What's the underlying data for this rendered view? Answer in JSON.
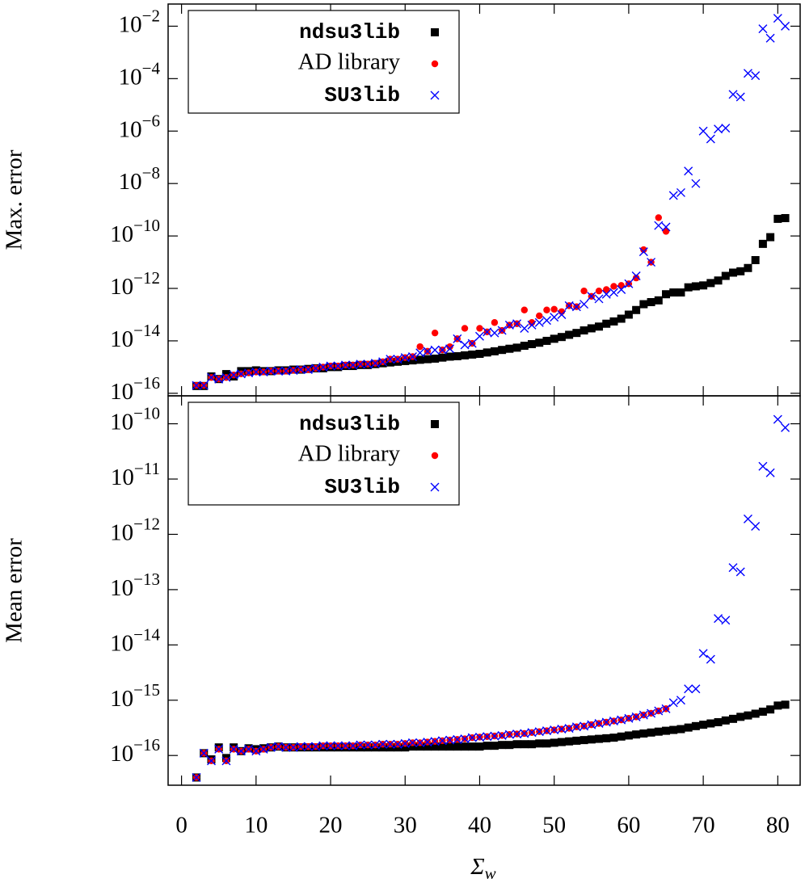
{
  "chart_data": [
    {
      "type": "scatter",
      "ylabel": "Max. error",
      "log_y": true,
      "legend": "upper left",
      "x": [
        2,
        3,
        4,
        5,
        6,
        7,
        8,
        9,
        10,
        11,
        12,
        13,
        14,
        15,
        16,
        17,
        18,
        19,
        20,
        21,
        22,
        23,
        24,
        25,
        26,
        27,
        28,
        29,
        30,
        31,
        32,
        33,
        34,
        35,
        36,
        37,
        38,
        39,
        40,
        41,
        42,
        43,
        44,
        45,
        46,
        47,
        48,
        49,
        50,
        51,
        52,
        53,
        54,
        55,
        56,
        57,
        58,
        59,
        60,
        61,
        62,
        63,
        64,
        65,
        66,
        67,
        68,
        69,
        70,
        71,
        72,
        73,
        74,
        75,
        76,
        77,
        78,
        79,
        80,
        81
      ],
      "xlim": [
        -1.8,
        83
      ],
      "xticks": [
        0,
        10,
        20,
        30,
        40,
        50,
        60,
        70,
        80
      ],
      "ylim": [
        8e-17,
        0.07
      ],
      "yticks": [
        {
          "value": 1e-16,
          "label": "10−16"
        },
        {
          "value": 1e-14,
          "label": "10−14"
        },
        {
          "value": 1e-12,
          "label": "10−12"
        },
        {
          "value": 1e-10,
          "label": "10−10"
        },
        {
          "value": 1e-08,
          "label": "10−8"
        },
        {
          "value": 1e-06,
          "label": "10−6"
        },
        {
          "value": 0.0001,
          "label": "10−4"
        },
        {
          "value": 0.01,
          "label": "10−2"
        }
      ],
      "series": [
        {
          "name": "ndsu3lib",
          "color": "#000000",
          "marker": "square",
          "values": [
            1.9e-16,
            1.9e-16,
            4.4e-16,
            3.5e-16,
            5.4e-16,
            4.4e-16,
            7e-16,
            7e-16,
            7.5e-16,
            7e-16,
            7e-16,
            7.5e-16,
            7.5e-16,
            8e-16,
            8e-16,
            8.5e-16,
            9e-16,
            9e-16,
            1e-15,
            1e-15,
            1.1e-15,
            1.1e-15,
            1.2e-15,
            1.2e-15,
            1.3e-15,
            1.4e-15,
            1.5e-15,
            1.6e-15,
            1.7e-15,
            1.8e-15,
            1.9e-15,
            2e-15,
            2.1e-15,
            2.3e-15,
            2.5e-15,
            2.6e-15,
            2.8e-15,
            3e-15,
            3.2e-15,
            3.6e-15,
            4e-15,
            4.5e-15,
            5e-15,
            5.5e-15,
            6.5e-15,
            7.5e-15,
            8.5e-15,
            1e-14,
            1.2e-14,
            1.4e-14,
            1.7e-14,
            2e-14,
            2.5e-14,
            3e-14,
            3.5e-14,
            4.5e-14,
            5.5e-14,
            7e-14,
            1e-13,
            1.5e-13,
            2.5e-13,
            3e-13,
            3.5e-13,
            6e-13,
            7e-13,
            7e-13,
            1.1e-12,
            1.2e-12,
            1.3e-12,
            1.6e-12,
            2e-12,
            3e-12,
            4e-12,
            4.5e-12,
            6e-12,
            1.2e-11,
            5e-11,
            9e-11,
            4.5e-10,
            4.8e-10
          ]
        },
        {
          "name": "AD library",
          "color": "#ff0000",
          "marker": "circle",
          "values": [
            2e-16,
            2e-16,
            4e-16,
            3.5e-16,
            4e-16,
            5e-16,
            5.5e-16,
            6e-16,
            6.5e-16,
            6.5e-16,
            7e-16,
            7e-16,
            7e-16,
            7.5e-16,
            8e-16,
            8e-16,
            9e-16,
            1e-15,
            1.1e-15,
            1.1e-15,
            1.2e-15,
            1.2e-15,
            1.3e-15,
            1.3e-15,
            1.4e-15,
            1.6e-15,
            2e-15,
            2e-15,
            2.3e-15,
            2.5e-15,
            6e-15,
            4e-15,
            2e-14,
            4.5e-15,
            6e-15,
            1.2e-14,
            3e-14,
            8e-15,
            3e-14,
            2.2e-14,
            5e-14,
            2.5e-14,
            4e-14,
            4.5e-14,
            1.5e-13,
            5e-14,
            9e-14,
            1.5e-13,
            1.6e-13,
            1.3e-13,
            2.2e-13,
            2e-13,
            8e-13,
            5e-13,
            8e-13,
            9e-13,
            1.2e-12,
            1.3e-12,
            1.5e-12,
            2.5e-12,
            3e-11,
            1e-11,
            5e-10,
            1.5e-10,
            null,
            null,
            null,
            null,
            null,
            null,
            null,
            null,
            null,
            null,
            null,
            null,
            null,
            null,
            null,
            null
          ]
        },
        {
          "name": "SU3lib",
          "color": "#0000ff",
          "marker": "cross",
          "values": [
            2e-16,
            2e-16,
            4e-16,
            3.5e-16,
            4e-16,
            5e-16,
            5.5e-16,
            6e-16,
            6.5e-16,
            6.5e-16,
            7e-16,
            7e-16,
            7e-16,
            7.5e-16,
            8e-16,
            8e-16,
            9e-16,
            1e-15,
            1.1e-15,
            1.1e-15,
            1.2e-15,
            1.2e-15,
            1.3e-15,
            1.3e-15,
            1.4e-15,
            1.6e-15,
            2e-15,
            2e-15,
            2.3e-15,
            2.5e-15,
            3.5e-15,
            4e-15,
            4.5e-15,
            4.5e-15,
            5e-15,
            1.2e-14,
            7e-15,
            8e-15,
            1.5e-14,
            2.2e-14,
            2e-14,
            2.5e-14,
            4e-14,
            4.5e-14,
            3e-14,
            4e-14,
            5e-14,
            6e-14,
            8e-14,
            1e-13,
            2.2e-13,
            2e-13,
            2.5e-13,
            5e-13,
            4e-13,
            6e-13,
            7e-13,
            9e-13,
            1.5e-12,
            3e-12,
            2.5e-11,
            1e-11,
            2.5e-10,
            2.2e-10,
            3.5e-09,
            4.5e-09,
            3e-08,
            1e-08,
            1e-06,
            5e-07,
            1.2e-06,
            1.3e-06,
            2.5e-05,
            2e-05,
            0.00016,
            0.00013,
            0.008,
            0.0035,
            0.02,
            0.01
          ]
        }
      ]
    },
    {
      "type": "scatter",
      "ylabel": "Mean error",
      "xlabel": "Σw",
      "log_y": true,
      "legend": "upper left",
      "x": [
        2,
        3,
        4,
        5,
        6,
        7,
        8,
        9,
        10,
        11,
        12,
        13,
        14,
        15,
        16,
        17,
        18,
        19,
        20,
        21,
        22,
        23,
        24,
        25,
        26,
        27,
        28,
        29,
        30,
        31,
        32,
        33,
        34,
        35,
        36,
        37,
        38,
        39,
        40,
        41,
        42,
        43,
        44,
        45,
        46,
        47,
        48,
        49,
        50,
        51,
        52,
        53,
        54,
        55,
        56,
        57,
        58,
        59,
        60,
        61,
        62,
        63,
        64,
        65,
        66,
        67,
        68,
        69,
        70,
        71,
        72,
        73,
        74,
        75,
        76,
        77,
        78,
        79,
        80,
        81
      ],
      "xlim": [
        -1.8,
        83
      ],
      "xticks": [
        0,
        10,
        20,
        30,
        40,
        50,
        60,
        70,
        80
      ],
      "ylim": [
        2.9e-17,
        3.2e-10
      ],
      "yticks": [
        {
          "value": 1e-16,
          "label": "10−16"
        },
        {
          "value": 1e-15,
          "label": "10−15"
        },
        {
          "value": 1e-14,
          "label": "10−14"
        },
        {
          "value": 1e-13,
          "label": "10−13"
        },
        {
          "value": 1e-12,
          "label": "10−12"
        },
        {
          "value": 1e-11,
          "label": "10−11"
        },
        {
          "value": 1e-10,
          "label": "10−10"
        }
      ],
      "series": [
        {
          "name": "ndsu3lib",
          "color": "#000000",
          "marker": "square",
          "values": [
            4e-17,
            1.1e-16,
            8.5e-17,
            1.4e-16,
            9e-17,
            1.4e-16,
            1.2e-16,
            1.35e-16,
            1.3e-16,
            1.35e-16,
            1.4e-16,
            1.45e-16,
            1.4e-16,
            1.4e-16,
            1.4e-16,
            1.4e-16,
            1.4e-16,
            1.4e-16,
            1.4e-16,
            1.4e-16,
            1.4e-16,
            1.4e-16,
            1.4e-16,
            1.4e-16,
            1.4e-16,
            1.4e-16,
            1.4e-16,
            1.4e-16,
            1.4e-16,
            1.45e-16,
            1.45e-16,
            1.45e-16,
            1.45e-16,
            1.45e-16,
            1.45e-16,
            1.45e-16,
            1.45e-16,
            1.45e-16,
            1.45e-16,
            1.5e-16,
            1.5e-16,
            1.55e-16,
            1.55e-16,
            1.6e-16,
            1.6e-16,
            1.6e-16,
            1.65e-16,
            1.65e-16,
            1.7e-16,
            1.75e-16,
            1.8e-16,
            1.85e-16,
            1.9e-16,
            1.95e-16,
            2e-16,
            2.05e-16,
            2.1e-16,
            2.2e-16,
            2.3e-16,
            2.4e-16,
            2.5e-16,
            2.6e-16,
            2.7e-16,
            2.8e-16,
            2.9e-16,
            3e-16,
            3.2e-16,
            3.4e-16,
            3.6e-16,
            3.8e-16,
            4e-16,
            4.3e-16,
            4.6e-16,
            5e-16,
            5.3e-16,
            5.7e-16,
            6.2e-16,
            6.8e-16,
            8e-16,
            8.3e-16
          ]
        },
        {
          "name": "AD library",
          "color": "#ff0000",
          "marker": "circle",
          "values": [
            4e-17,
            1.1e-16,
            8e-17,
            1.3e-16,
            8e-17,
            1.3e-16,
            1.2e-16,
            1.3e-16,
            1.2e-16,
            1.3e-16,
            1.4e-16,
            1.45e-16,
            1.4e-16,
            1.4e-16,
            1.45e-16,
            1.45e-16,
            1.45e-16,
            1.5e-16,
            1.5e-16,
            1.5e-16,
            1.5e-16,
            1.5e-16,
            1.55e-16,
            1.55e-16,
            1.55e-16,
            1.6e-16,
            1.6e-16,
            1.6e-16,
            1.65e-16,
            1.7e-16,
            1.7e-16,
            1.75e-16,
            1.8e-16,
            1.85e-16,
            1.9e-16,
            1.95e-16,
            2e-16,
            2.1e-16,
            2.15e-16,
            2.2e-16,
            2.25e-16,
            2.3e-16,
            2.4e-16,
            2.45e-16,
            2.5e-16,
            2.6e-16,
            2.7e-16,
            2.8e-16,
            2.9e-16,
            3e-16,
            3.1e-16,
            3.3e-16,
            3.4e-16,
            3.6e-16,
            3.8e-16,
            4e-16,
            4.2e-16,
            4.4e-16,
            4.7e-16,
            5e-16,
            5.4e-16,
            5.8e-16,
            6.4e-16,
            7e-16,
            null,
            null,
            null,
            null,
            null,
            null,
            null,
            null,
            null,
            null,
            null,
            null,
            null,
            null,
            null,
            null
          ]
        },
        {
          "name": "SU3lib",
          "color": "#0000ff",
          "marker": "cross",
          "values": [
            4e-17,
            1.1e-16,
            8e-17,
            1.3e-16,
            8e-17,
            1.3e-16,
            1.2e-16,
            1.3e-16,
            1.2e-16,
            1.3e-16,
            1.4e-16,
            1.45e-16,
            1.4e-16,
            1.4e-16,
            1.45e-16,
            1.45e-16,
            1.45e-16,
            1.5e-16,
            1.5e-16,
            1.5e-16,
            1.5e-16,
            1.5e-16,
            1.55e-16,
            1.55e-16,
            1.55e-16,
            1.6e-16,
            1.6e-16,
            1.6e-16,
            1.65e-16,
            1.7e-16,
            1.7e-16,
            1.75e-16,
            1.8e-16,
            1.85e-16,
            1.9e-16,
            1.95e-16,
            2e-16,
            2.1e-16,
            2.15e-16,
            2.2e-16,
            2.25e-16,
            2.3e-16,
            2.4e-16,
            2.45e-16,
            2.5e-16,
            2.6e-16,
            2.7e-16,
            2.8e-16,
            2.9e-16,
            3e-16,
            3.1e-16,
            3.3e-16,
            3.4e-16,
            3.6e-16,
            3.8e-16,
            4e-16,
            4.2e-16,
            4.4e-16,
            4.7e-16,
            5e-16,
            5.4e-16,
            5.8e-16,
            6.4e-16,
            7e-16,
            9e-16,
            1e-15,
            1.6e-15,
            1.6e-15,
            7e-15,
            5.5e-15,
            3e-14,
            2.8e-14,
            2.5e-13,
            2.1e-13,
            1.9e-12,
            1.4e-12,
            1.7e-11,
            1.3e-11,
            1.2e-10,
            8.5e-11
          ]
        }
      ]
    }
  ]
}
